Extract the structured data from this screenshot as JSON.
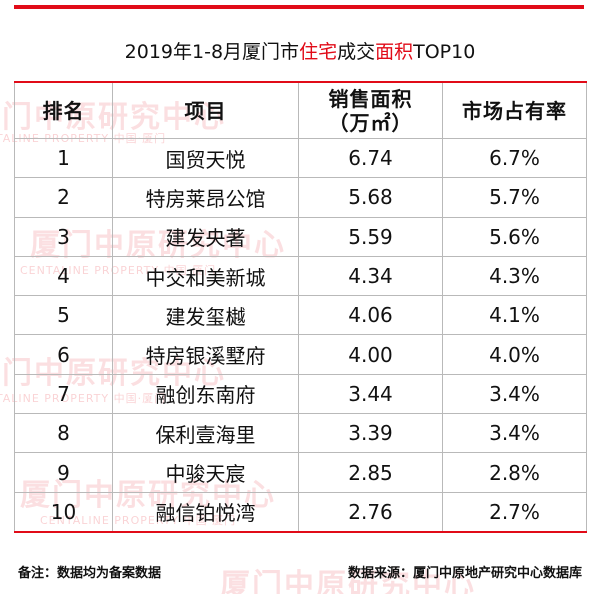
{
  "title": {
    "part1": "2019年1-8月厦门市",
    "highlight1": "住宅",
    "part2": "成交",
    "highlight2": "面积",
    "part3": "TOP10"
  },
  "table": {
    "headers": [
      "排名",
      "项目",
      "销售面积\n（万㎡）",
      "市场占有率"
    ],
    "rows": [
      {
        "rank": "1",
        "project": "国贸天悦",
        "area": "6.74",
        "share": "6.7%"
      },
      {
        "rank": "2",
        "project": "特房莱昂公馆",
        "area": "5.68",
        "share": "5.7%"
      },
      {
        "rank": "3",
        "project": "建发央著",
        "area": "5.59",
        "share": "5.6%"
      },
      {
        "rank": "4",
        "project": "中交和美新城",
        "area": "4.34",
        "share": "4.3%"
      },
      {
        "rank": "5",
        "project": "建发玺樾",
        "area": "4.06",
        "share": "4.1%"
      },
      {
        "rank": "6",
        "project": "特房银溪墅府",
        "area": "4.00",
        "share": "4.0%"
      },
      {
        "rank": "7",
        "project": "融创东南府",
        "area": "3.44",
        "share": "3.4%"
      },
      {
        "rank": "8",
        "project": "保利壹海里",
        "area": "3.39",
        "share": "3.4%"
      },
      {
        "rank": "9",
        "project": "中骏天宸",
        "area": "2.85",
        "share": "2.8%"
      },
      {
        "rank": "10",
        "project": "融信铂悦湾",
        "area": "2.76",
        "share": "2.7%"
      }
    ]
  },
  "footnote": "备注：数据均为备案数据",
  "source": "数据来源：厦门中原地产研究中心数据库",
  "watermark": {
    "main": "厦门中原研究中心",
    "sub": "CENTALINE PROPERTY   中国·厦门"
  },
  "colors": {
    "accent": "#e10b18",
    "border": "#b9b9b9"
  }
}
